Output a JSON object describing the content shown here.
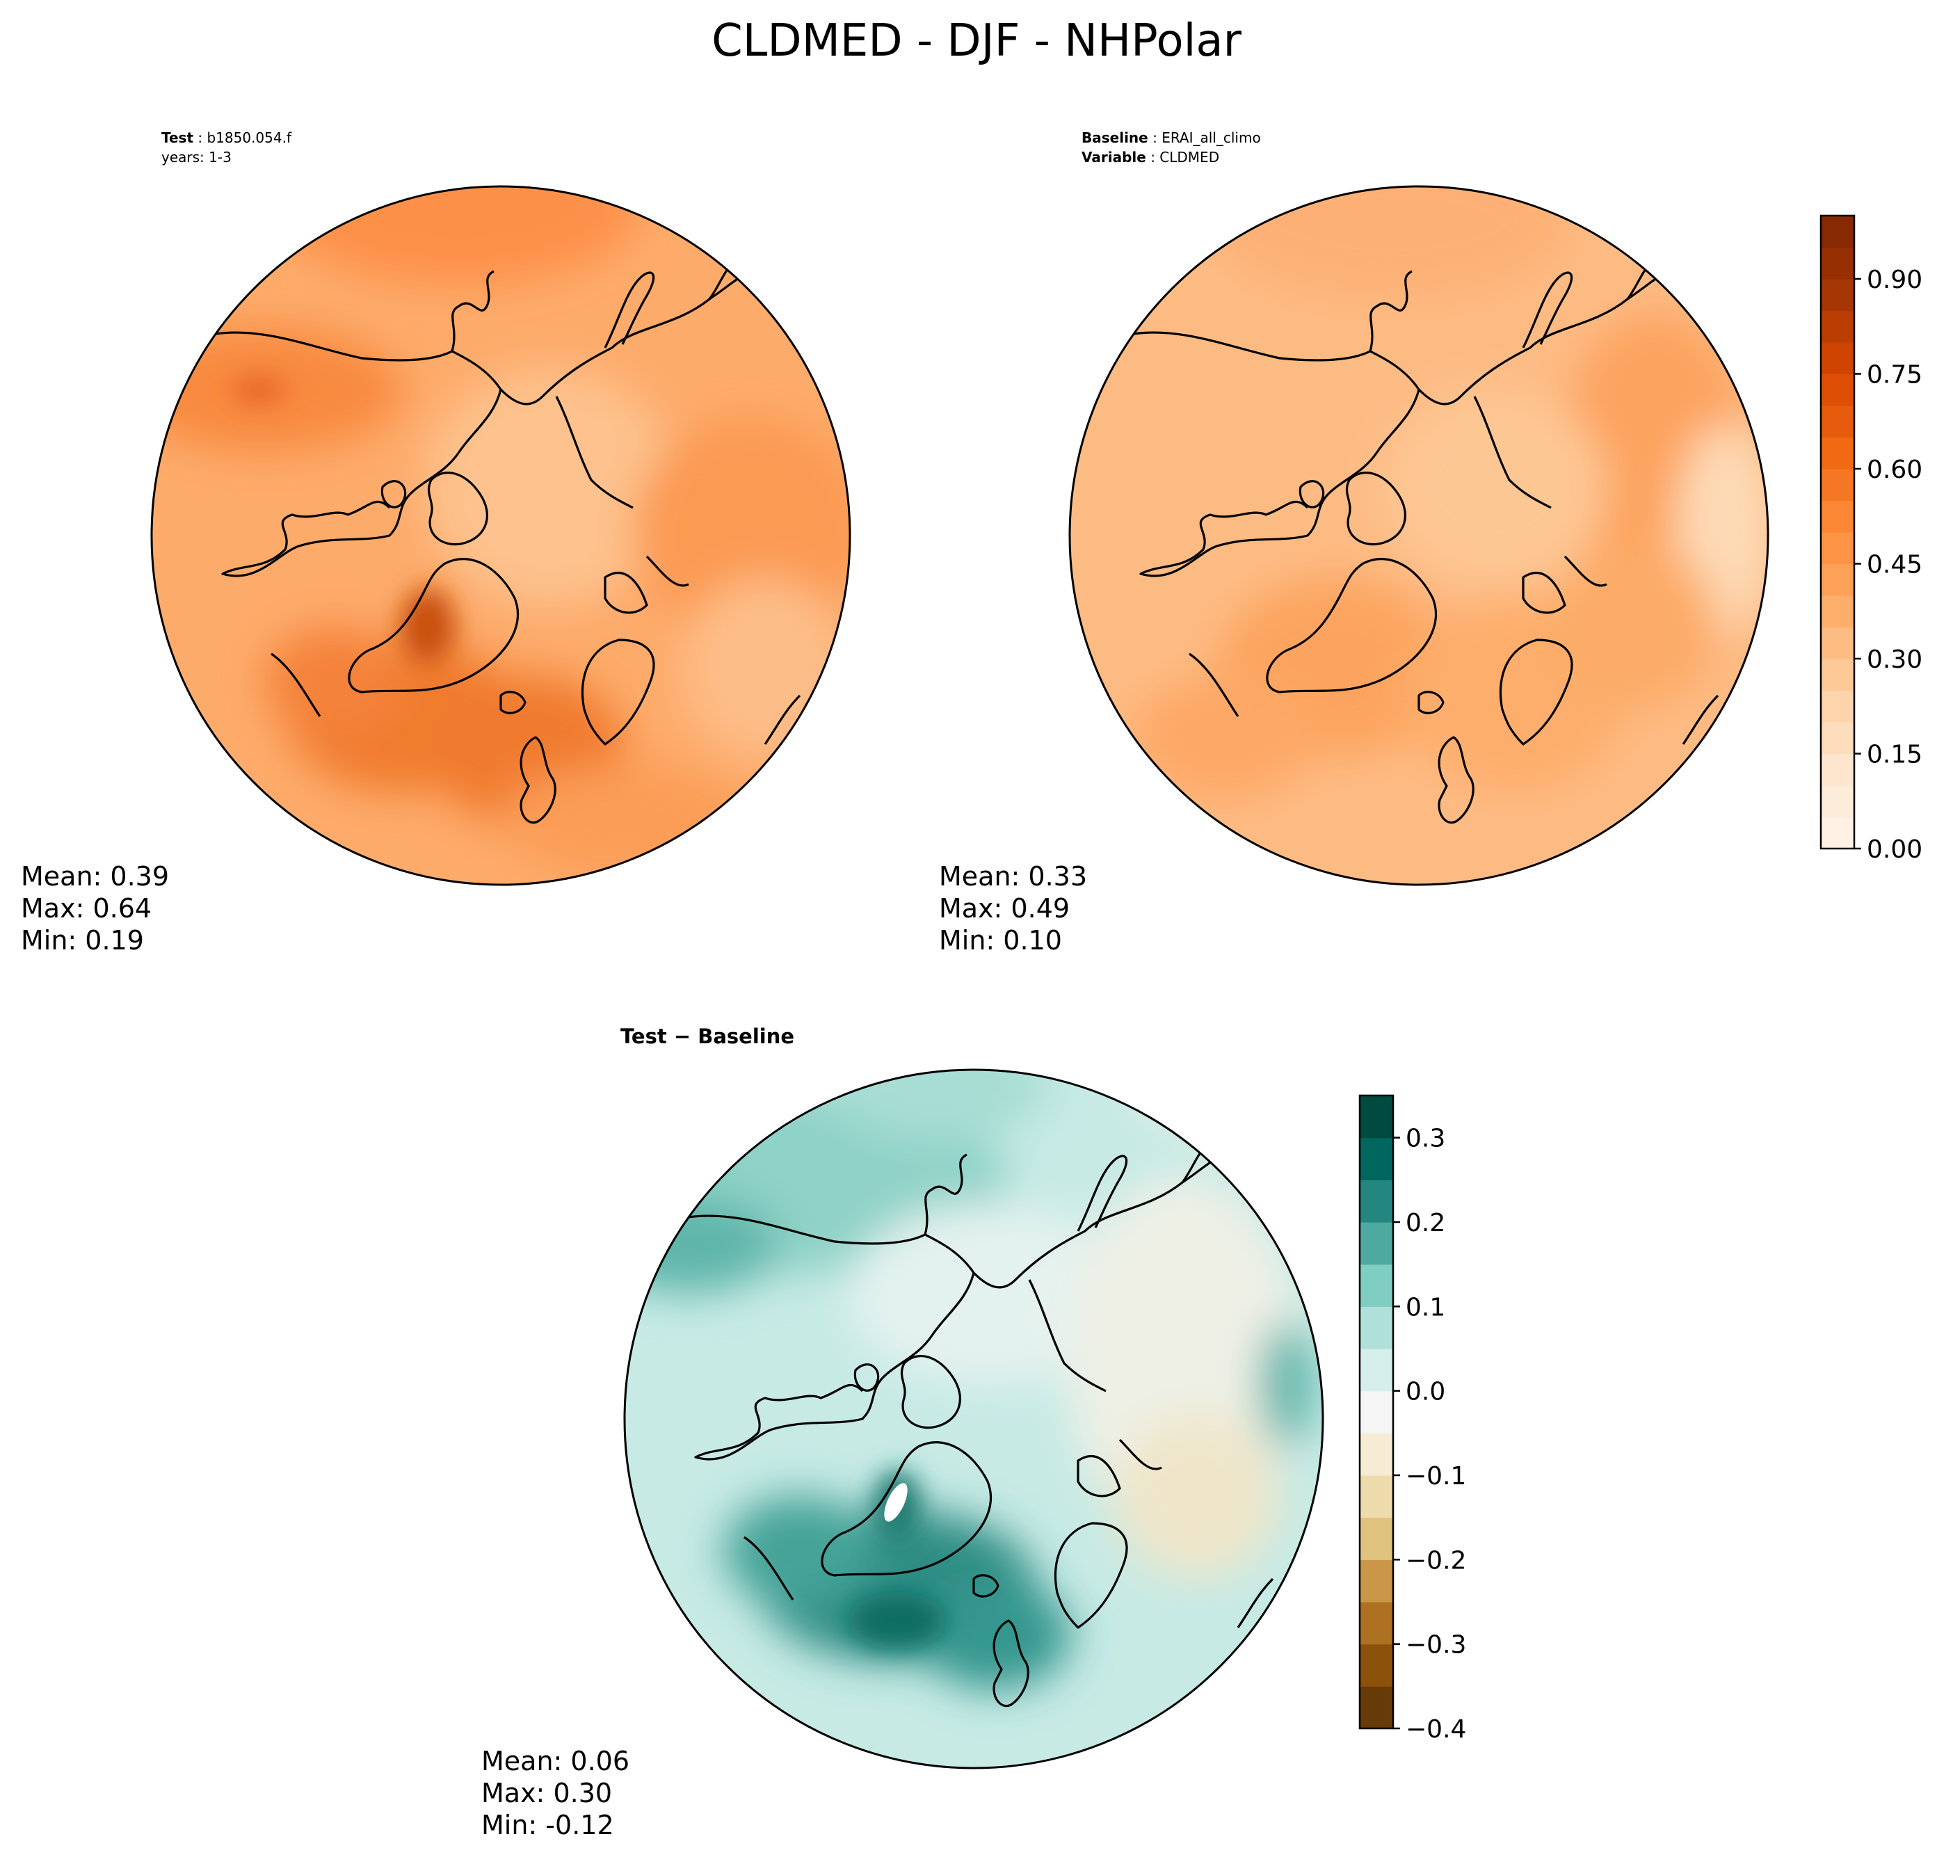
{
  "title": "CLDMED - DJF - NHPolar",
  "colors": {
    "orange_scale": [
      "#fff5eb",
      "#fee6ce",
      "#fdd0a2",
      "#fdae6b",
      "#fd8d3c",
      "#f16913",
      "#d94801",
      "#a63603",
      "#7f2704"
    ],
    "diff_scale": [
      "#543005",
      "#8c510a",
      "#bf812d",
      "#dfc27d",
      "#f6e8c3",
      "#f5f5f5",
      "#c7eae5",
      "#80cdc1",
      "#35978f",
      "#01665e",
      "#003c30"
    ],
    "coast": "#000000"
  },
  "chart_data": [
    {
      "type": "map",
      "panel": "test",
      "header": {
        "bold_label": "Test",
        "value": "b1850.054.f",
        "line2": "years: 1-3"
      },
      "projection": "North Polar Stereographic",
      "variable": "CLDMED",
      "stats": {
        "mean": "Mean:  0.39",
        "max": "Max:  0.64",
        "min": "Min:  0.19"
      },
      "summary": {
        "mean": 0.39,
        "max": 0.64,
        "min": 0.19
      }
    },
    {
      "type": "map",
      "panel": "baseline",
      "header": {
        "bold_label": "Baseline",
        "value": "ERAI_all_climo",
        "bold_label2": "Variable",
        "value2": "CLDMED"
      },
      "projection": "North Polar Stereographic",
      "stats": {
        "mean": "Mean:  0.33",
        "max": "Max:  0.49",
        "min": "Min:  0.10"
      },
      "summary": {
        "mean": 0.33,
        "max": 0.49,
        "min": 0.1
      }
    },
    {
      "type": "map",
      "panel": "difference",
      "header": {
        "title": "Test − Baseline"
      },
      "projection": "North Polar Stereographic",
      "stats": {
        "mean": "Mean:  0.06",
        "max": "Max:  0.30",
        "min": "Min: -0.12"
      },
      "summary": {
        "mean": 0.06,
        "max": 0.3,
        "min": -0.12
      }
    }
  ],
  "colorbars": {
    "main": {
      "range": [
        0.0,
        1.0
      ],
      "ticks": [
        0.0,
        0.15,
        0.3,
        0.45,
        0.6,
        0.75,
        0.9
      ],
      "tick_labels": [
        "0.00",
        "0.15",
        "0.30",
        "0.45",
        "0.60",
        "0.75",
        "0.90"
      ]
    },
    "diff": {
      "range": [
        -0.4,
        0.35
      ],
      "ticks": [
        -0.4,
        -0.3,
        -0.2,
        -0.1,
        0.0,
        0.1,
        0.2,
        0.3
      ],
      "tick_labels": [
        "−0.4",
        "−0.3",
        "−0.2",
        "−0.1",
        "0.0",
        "0.1",
        "0.2",
        "0.3"
      ]
    }
  }
}
